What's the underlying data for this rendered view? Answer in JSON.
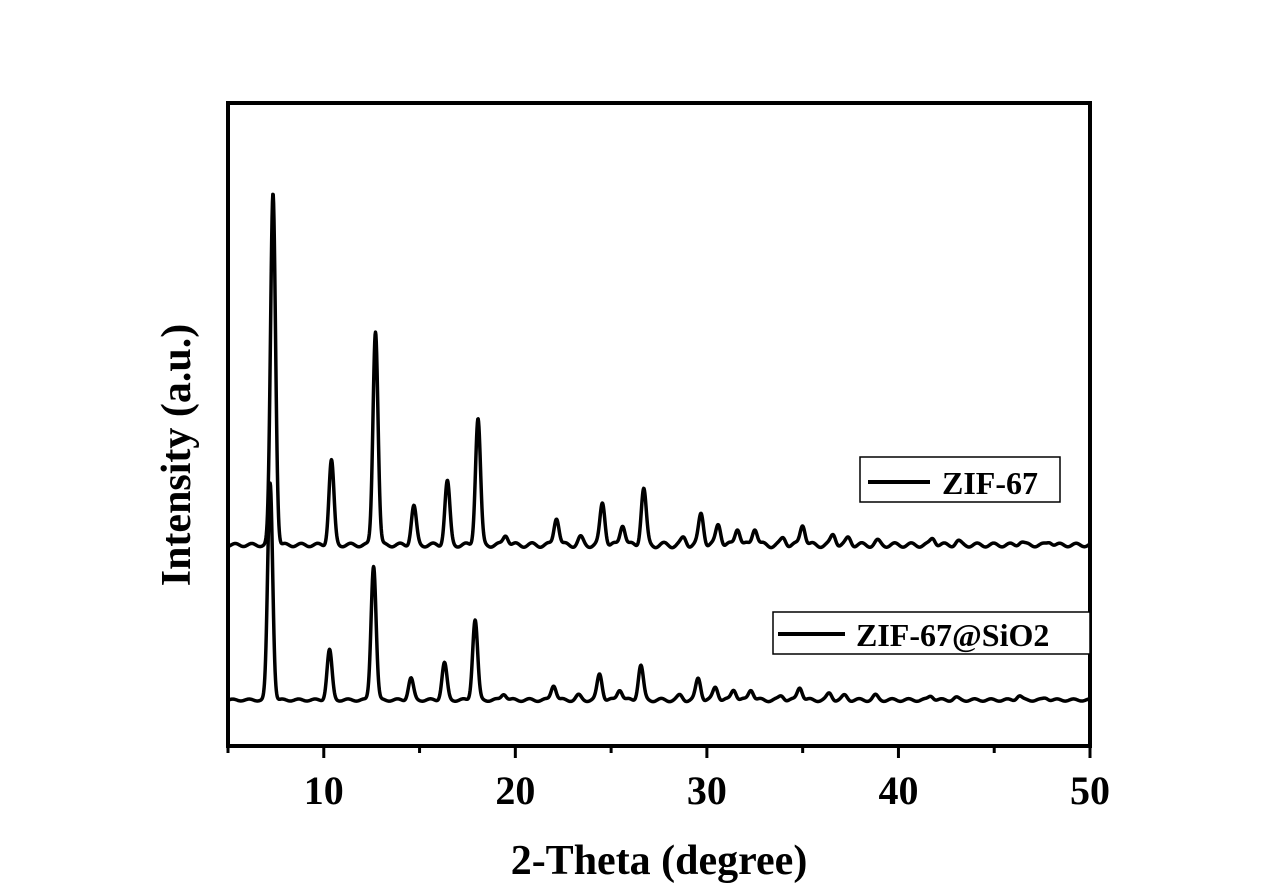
{
  "chart_data": {
    "type": "line",
    "xlabel": "2-Theta (degree)",
    "ylabel": "Intensity (a.u.)",
    "xlim": [
      5,
      50
    ],
    "xticks": [
      10,
      20,
      30,
      40,
      50
    ],
    "x_tick_labels": [
      "10",
      "20",
      "30",
      "40",
      "50"
    ],
    "y_ticks_shown": false,
    "grid": false,
    "series": [
      {
        "name": "ZIF-67",
        "color": "#000000",
        "baseline": 0.0,
        "peaks": [
          {
            "x": 7.35,
            "h": 1.0
          },
          {
            "x": 10.4,
            "h": 0.24
          },
          {
            "x": 12.7,
            "h": 0.61
          },
          {
            "x": 14.7,
            "h": 0.11
          },
          {
            "x": 16.45,
            "h": 0.18
          },
          {
            "x": 18.05,
            "h": 0.36
          },
          {
            "x": 19.5,
            "h": 0.03
          },
          {
            "x": 22.15,
            "h": 0.08
          },
          {
            "x": 23.4,
            "h": 0.02
          },
          {
            "x": 24.55,
            "h": 0.12
          },
          {
            "x": 25.6,
            "h": 0.06
          },
          {
            "x": 26.7,
            "h": 0.16
          },
          {
            "x": 28.8,
            "h": 0.02
          },
          {
            "x": 29.7,
            "h": 0.09
          },
          {
            "x": 30.6,
            "h": 0.06
          },
          {
            "x": 31.6,
            "h": 0.05
          },
          {
            "x": 32.5,
            "h": 0.05
          },
          {
            "x": 34.0,
            "h": 0.02
          },
          {
            "x": 35.0,
            "h": 0.06
          },
          {
            "x": 36.6,
            "h": 0.03
          },
          {
            "x": 37.4,
            "h": 0.02
          },
          {
            "x": 38.9,
            "h": 0.01
          },
          {
            "x": 41.8,
            "h": 0.02
          },
          {
            "x": 43.1,
            "h": 0.01
          },
          {
            "x": 46.4,
            "h": 0.01
          },
          {
            "x": 47.9,
            "h": 0.01
          }
        ]
      },
      {
        "name": "ZIF-67@SiO2",
        "color": "#000000",
        "baseline": 0.0,
        "peaks": [
          {
            "x": 7.2,
            "h": 1.0
          },
          {
            "x": 10.3,
            "h": 0.23
          },
          {
            "x": 12.6,
            "h": 0.62
          },
          {
            "x": 14.55,
            "h": 0.1
          },
          {
            "x": 16.3,
            "h": 0.17
          },
          {
            "x": 17.9,
            "h": 0.37
          },
          {
            "x": 19.4,
            "h": 0.03
          },
          {
            "x": 22.0,
            "h": 0.07
          },
          {
            "x": 23.3,
            "h": 0.02
          },
          {
            "x": 24.4,
            "h": 0.12
          },
          {
            "x": 25.45,
            "h": 0.05
          },
          {
            "x": 26.55,
            "h": 0.16
          },
          {
            "x": 28.6,
            "h": 0.02
          },
          {
            "x": 29.55,
            "h": 0.1
          },
          {
            "x": 30.45,
            "h": 0.06
          },
          {
            "x": 31.4,
            "h": 0.05
          },
          {
            "x": 32.3,
            "h": 0.05
          },
          {
            "x": 33.9,
            "h": 0.02
          },
          {
            "x": 34.85,
            "h": 0.06
          },
          {
            "x": 36.4,
            "h": 0.03
          },
          {
            "x": 37.2,
            "h": 0.02
          },
          {
            "x": 38.8,
            "h": 0.02
          },
          {
            "x": 41.7,
            "h": 0.02
          },
          {
            "x": 43.0,
            "h": 0.01
          },
          {
            "x": 46.3,
            "h": 0.02
          },
          {
            "x": 47.7,
            "h": 0.01
          }
        ]
      }
    ],
    "legend": [
      {
        "label": "ZIF-67"
      },
      {
        "label": "ZIF-67@SiO2"
      }
    ]
  }
}
